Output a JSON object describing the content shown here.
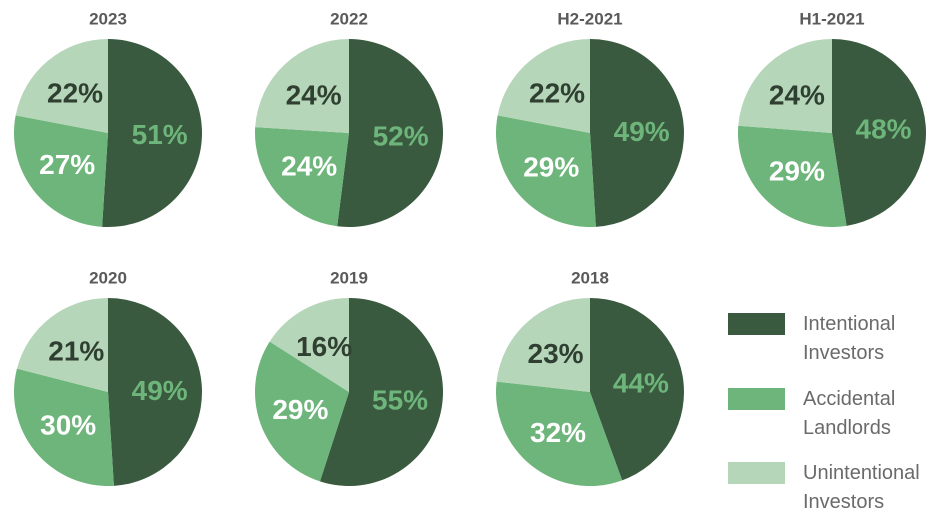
{
  "chart_data": [
    {
      "type": "pie",
      "title": "2023",
      "categories": [
        "Intentional Investors",
        "Accidental Landlords",
        "Unintentional Investors"
      ],
      "values": [
        51,
        27,
        22
      ],
      "value_labels": [
        "51%",
        "27%",
        "22%"
      ],
      "colors": [
        "#3a5a3f",
        "#6db57a",
        "#b5d6b8"
      ]
    },
    {
      "type": "pie",
      "title": "2022",
      "categories": [
        "Intentional Investors",
        "Accidental Landlords",
        "Unintentional Investors"
      ],
      "values": [
        52,
        24,
        24
      ],
      "value_labels": [
        "52%",
        "24%",
        "24%"
      ],
      "colors": [
        "#3a5a3f",
        "#6db57a",
        "#b5d6b8"
      ]
    },
    {
      "type": "pie",
      "title": "H2-2021",
      "categories": [
        "Intentional Investors",
        "Accidental Landlords",
        "Unintentional Investors"
      ],
      "values": [
        49,
        29,
        22
      ],
      "value_labels": [
        "49%",
        "29%",
        "22%"
      ],
      "colors": [
        "#3a5a3f",
        "#6db57a",
        "#b5d6b8"
      ]
    },
    {
      "type": "pie",
      "title": "H1-2021",
      "categories": [
        "Intentional Investors",
        "Accidental Landlords",
        "Unintentional Investors"
      ],
      "values": [
        48,
        29,
        24
      ],
      "value_labels": [
        "48%",
        "29%",
        "24%"
      ],
      "colors": [
        "#3a5a3f",
        "#6db57a",
        "#b5d6b8"
      ]
    },
    {
      "type": "pie",
      "title": "2020",
      "categories": [
        "Intentional Investors",
        "Accidental Landlords",
        "Unintentional Investors"
      ],
      "values": [
        49,
        30,
        21
      ],
      "value_labels": [
        "49%",
        "30%",
        "21%"
      ],
      "colors": [
        "#3a5a3f",
        "#6db57a",
        "#b5d6b8"
      ]
    },
    {
      "type": "pie",
      "title": "2019",
      "categories": [
        "Intentional Investors",
        "Accidental Landlords",
        "Unintentional Investors"
      ],
      "values": [
        55,
        29,
        16
      ],
      "value_labels": [
        "55%",
        "29%",
        "16%"
      ],
      "colors": [
        "#3a5a3f",
        "#6db57a",
        "#b5d6b8"
      ]
    },
    {
      "type": "pie",
      "title": "2018",
      "categories": [
        "Intentional Investors",
        "Accidental Landlords",
        "Unintentional Investors"
      ],
      "values": [
        44,
        32,
        23
      ],
      "value_labels": [
        "44%",
        "32%",
        "23%"
      ],
      "colors": [
        "#3a5a3f",
        "#6db57a",
        "#b5d6b8"
      ]
    }
  ]
}
